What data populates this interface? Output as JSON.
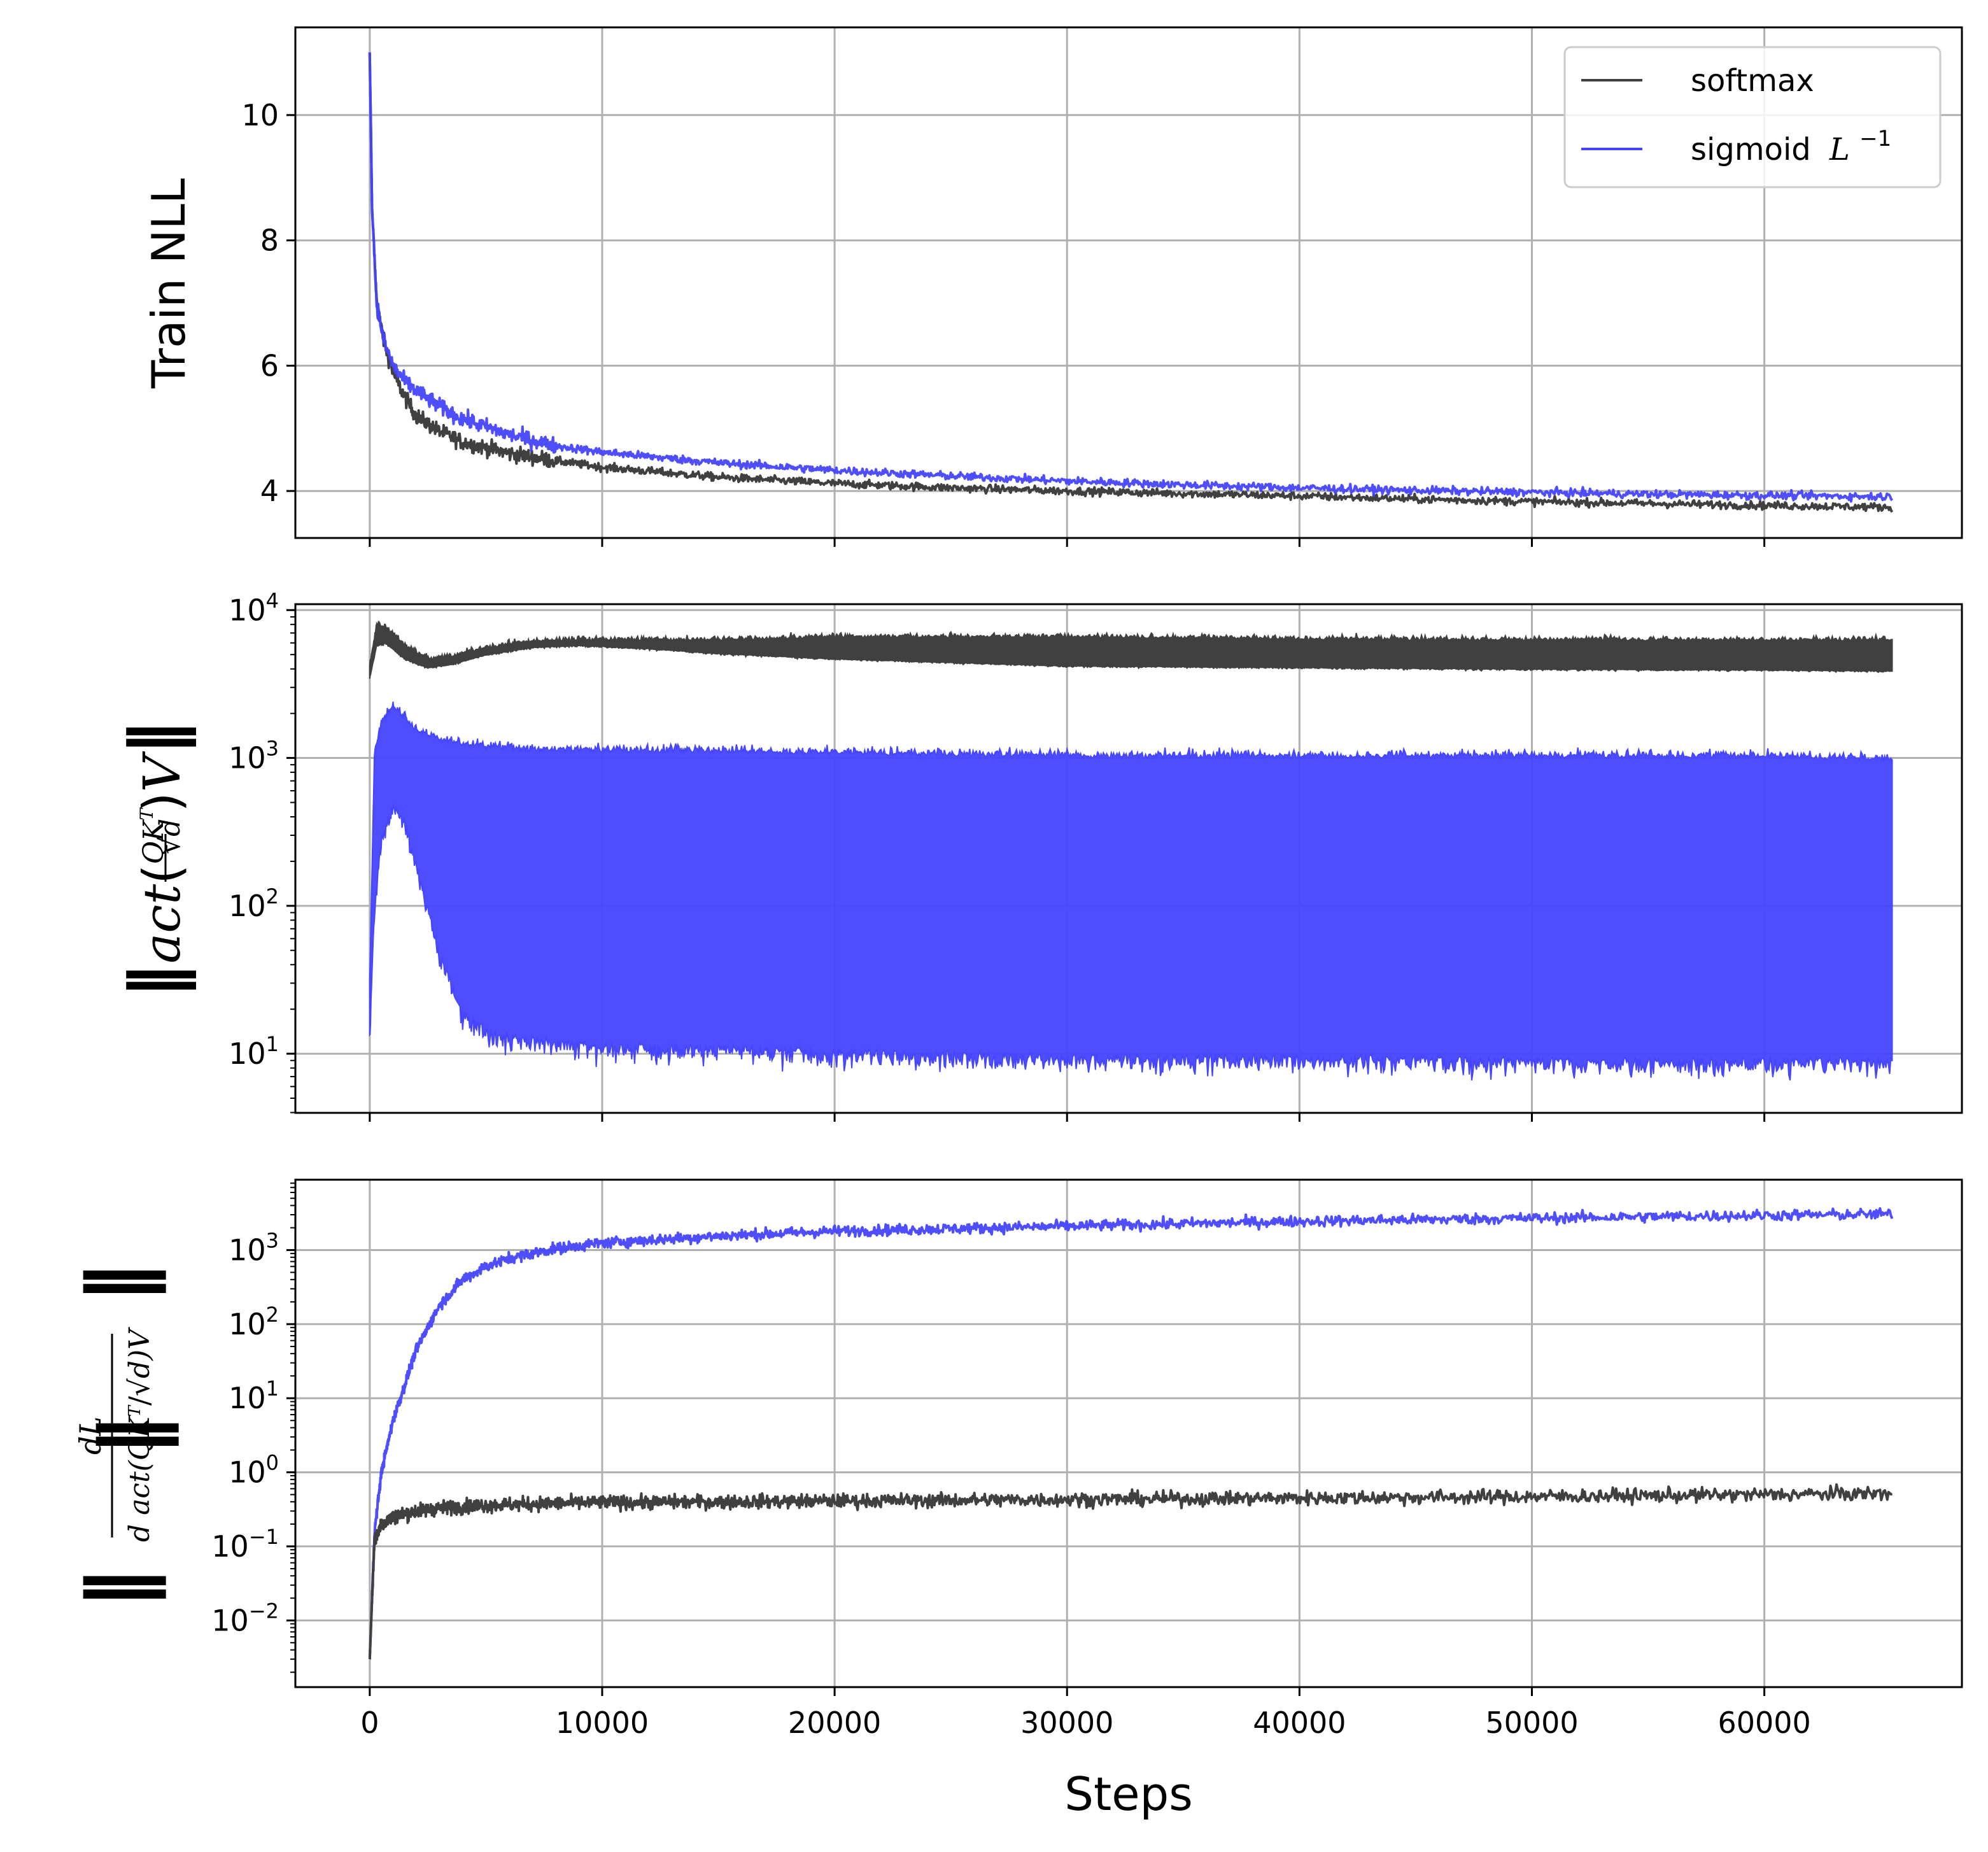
{
  "chart_data": [
    {
      "type": "line",
      "panel": "top",
      "ylabel": "Train NLL",
      "yscale": "linear",
      "xlim": [
        -3200,
        68500
      ],
      "ylim": [
        3.25,
        11.4
      ],
      "yticks": [
        4,
        6,
        8,
        10
      ],
      "ytick_labels": [
        "4",
        "6",
        "8",
        "10"
      ],
      "grid": true,
      "legend": {
        "position": "top-right",
        "entries": [
          {
            "name": "softmax",
            "color": "#404040"
          },
          {
            "name": "sigmoid",
            "suffix_base": "L",
            "suffix_exp": "−1",
            "color": "#4545ff"
          }
        ]
      },
      "series": [
        {
          "name": "softmax",
          "color": "#404040",
          "x": [
            0,
            100,
            300,
            600,
            1000,
            1500,
            2000,
            3000,
            4000,
            6000,
            8000,
            10000,
            15000,
            20000,
            25000,
            30000,
            35000,
            40000,
            45000,
            50000,
            55000,
            60000,
            65500
          ],
          "y": [
            11.0,
            8.5,
            7.0,
            6.4,
            5.9,
            5.5,
            5.2,
            4.95,
            4.78,
            4.6,
            4.48,
            4.38,
            4.22,
            4.12,
            4.05,
            4.0,
            3.96,
            3.92,
            3.87,
            3.83,
            3.8,
            3.77,
            3.74
          ],
          "noise": 0.06
        },
        {
          "name": "sigmoid L^-1",
          "color": "#4545ff",
          "x": [
            0,
            100,
            300,
            600,
            1000,
            1500,
            2000,
            3000,
            4000,
            6000,
            8000,
            10000,
            15000,
            20000,
            25000,
            30000,
            35000,
            40000,
            45000,
            50000,
            55000,
            60000,
            65500
          ],
          "y": [
            11.0,
            8.5,
            7.0,
            6.4,
            6.0,
            5.75,
            5.6,
            5.35,
            5.15,
            4.9,
            4.72,
            4.62,
            4.45,
            4.33,
            4.24,
            4.16,
            4.1,
            4.05,
            4.01,
            3.98,
            3.95,
            3.93,
            3.91
          ],
          "noise": 0.06
        }
      ]
    },
    {
      "type": "line",
      "panel": "middle",
      "ylabel": "||act(QK^T/√d)V||",
      "yscale": "log",
      "xlim": [
        -3200,
        68500
      ],
      "ylim_exp": [
        0.6,
        4.04
      ],
      "yticks_exp": [
        1,
        2,
        3,
        4
      ],
      "ytick_base": "10",
      "ytick_exps": [
        "1",
        "2",
        "3",
        "4"
      ],
      "grid": true,
      "series": [
        {
          "name": "softmax",
          "color": "#404040",
          "x": [
            0,
            300,
            700,
            1500,
            2500,
            3500,
            5000,
            7000,
            9000,
            12000,
            15000,
            20000,
            30000,
            40000,
            50000,
            60000,
            65500
          ],
          "y": [
            3800,
            6500,
            6800,
            5200,
            4300,
            4500,
            5200,
            5800,
            6000,
            5800,
            5500,
            5200,
            4800,
            4700,
            4600,
            4550,
            4500
          ],
          "band_low": [
            3500,
            5800,
            6000,
            4700,
            4100,
            4300,
            5000,
            5600,
            5800,
            5500,
            5100,
            4700,
            4200,
            4100,
            4000,
            3950,
            3900
          ],
          "band_high": [
            4200,
            7800,
            7500,
            5700,
            4600,
            4800,
            5500,
            6100,
            6200,
            6200,
            6200,
            6500,
            6500,
            6300,
            6200,
            6200,
            6200
          ]
        },
        {
          "name": "sigmoid L^-1",
          "color": "#4545ff",
          "x": [
            0,
            200,
            500,
            1000,
            1500,
            2000,
            2500,
            3000,
            4000,
            5000,
            7000,
            10000,
            20000,
            30000,
            40000,
            50000,
            60000,
            65500
          ],
          "y_low": [
            15,
            100,
            300,
            500,
            400,
            200,
            100,
            50,
            20,
            15,
            13,
            12,
            11,
            10,
            10,
            9.5,
            9.5,
            9.5
          ],
          "y_high": [
            30,
            1000,
            1700,
            2200,
            1800,
            1500,
            1400,
            1300,
            1200,
            1150,
            1100,
            1100,
            1050,
            1000,
            1000,
            1000,
            1000,
            950
          ]
        }
      ]
    },
    {
      "type": "line",
      "panel": "bottom",
      "ylabel": "||dL / d act(QK^T/√d)V||",
      "yscale": "log",
      "xlim": [
        -3200,
        68500
      ],
      "xlabel": "Steps",
      "xticks": [
        0,
        10000,
        20000,
        30000,
        40000,
        50000,
        60000
      ],
      "xtick_labels": [
        "0",
        "10000",
        "20000",
        "30000",
        "40000",
        "50000",
        "60000"
      ],
      "ylim_exp": [
        -2.9,
        3.95
      ],
      "yticks_exp": [
        -2,
        -1,
        0,
        1,
        2,
        3
      ],
      "ytick_base": "10",
      "ytick_exps": [
        "−2",
        "−1",
        "0",
        "1",
        "2",
        "3"
      ],
      "grid": true,
      "series": [
        {
          "name": "softmax",
          "color": "#404040",
          "x": [
            0,
            200,
            500,
            1000,
            2000,
            3000,
            5000,
            8000,
            10000,
            20000,
            30000,
            40000,
            50000,
            60000,
            65500
          ],
          "y": [
            0.003,
            0.12,
            0.2,
            0.25,
            0.3,
            0.33,
            0.36,
            0.38,
            0.39,
            0.41,
            0.43,
            0.45,
            0.47,
            0.5,
            0.52
          ],
          "noise_dex": 0.09
        },
        {
          "name": "sigmoid L^-1",
          "color": "#4545ff",
          "x": [
            0,
            200,
            500,
            1000,
            1500,
            2000,
            3000,
            4000,
            5000,
            6000,
            8000,
            10000,
            15000,
            20000,
            30000,
            40000,
            50000,
            60000,
            65500
          ],
          "y": [
            0.003,
            0.15,
            1.0,
            5.0,
            15,
            45,
            180,
            400,
            600,
            780,
            1050,
            1250,
            1550,
            1800,
            2100,
            2450,
            2700,
            2950,
            3050
          ],
          "noise_dex": 0.07
        }
      ]
    }
  ]
}
